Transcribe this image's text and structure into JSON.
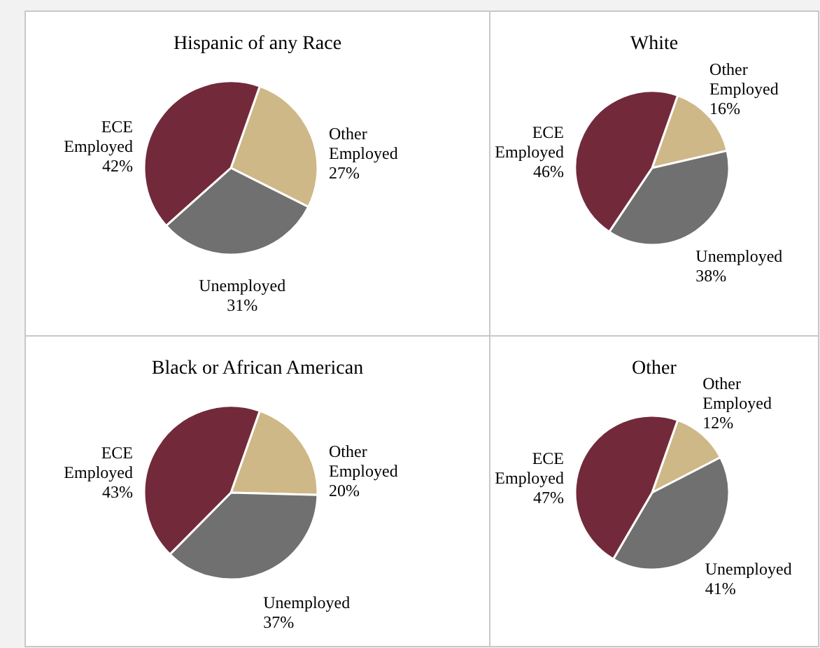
{
  "chart_data": [
    {
      "type": "pie",
      "title": "Hispanic of any Race",
      "categories": [
        "Other Employed",
        "Unemployed",
        "ECE Employed"
      ],
      "values": [
        27,
        31,
        42
      ],
      "value_labels": [
        "27%",
        "31%",
        "42%"
      ],
      "colors": [
        "#cfb887",
        "#707070",
        "#722a3a"
      ]
    },
    {
      "type": "pie",
      "title": "White",
      "categories": [
        "Other Employed",
        "Unemployed",
        "ECE Employed"
      ],
      "values": [
        16,
        38,
        46
      ],
      "value_labels": [
        "16%",
        "38%",
        "46%"
      ],
      "colors": [
        "#cfb887",
        "#707070",
        "#722a3a"
      ]
    },
    {
      "type": "pie",
      "title": "Black or African American",
      "categories": [
        "Other Employed",
        "Unemployed",
        "ECE Employed"
      ],
      "values": [
        20,
        37,
        43
      ],
      "value_labels": [
        "20%",
        "37%",
        "43%"
      ],
      "colors": [
        "#cfb887",
        "#707070",
        "#722a3a"
      ]
    },
    {
      "type": "pie",
      "title": "Other",
      "categories": [
        "Other Employed",
        "Unemployed",
        "ECE Employed"
      ],
      "values": [
        12,
        41,
        47
      ],
      "value_labels": [
        "12%",
        "41%",
        "47%"
      ],
      "colors": [
        "#cfb887",
        "#707070",
        "#722a3a"
      ]
    }
  ]
}
